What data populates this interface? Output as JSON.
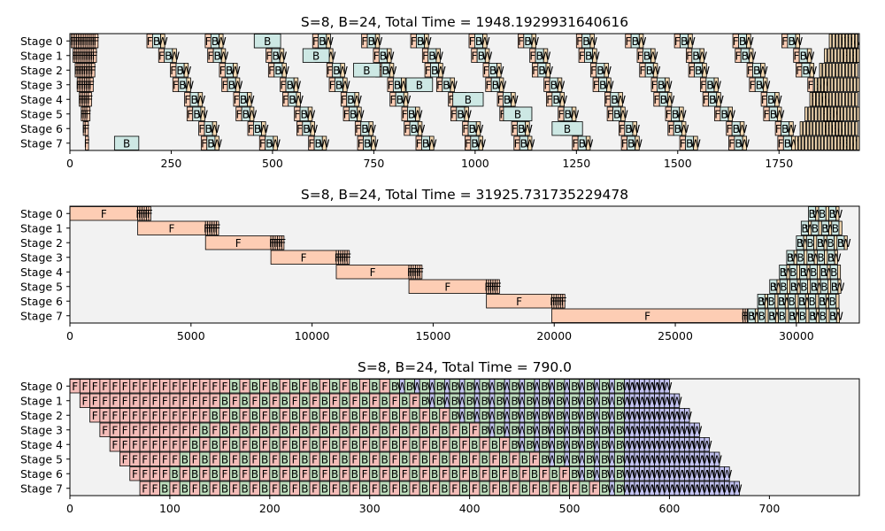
{
  "chart_data": [
    {
      "type": "gantt",
      "title": "S=8, B=24, Total Time = 1948.1929931640616",
      "stages": [
        "Stage 0",
        "Stage 1",
        "Stage 2",
        "Stage 3",
        "Stage 4",
        "Stage 5",
        "Stage 6",
        "Stage 7"
      ],
      "xlim": [
        0,
        1948.19
      ],
      "xticks": [
        0,
        250,
        500,
        750,
        1000,
        1250,
        1500,
        1750
      ],
      "xtick_labels": [
        "0",
        "250",
        "500",
        "750",
        "1000",
        "1250",
        "1500",
        "1750"
      ],
      "grid": false,
      "block_labels": {
        "F": "F",
        "B": "B",
        "W": "W"
      },
      "colors": {
        "F": "#fdcdb4",
        "B": "#cde8e4",
        "W": "#f3d8b0",
        "background": "#f2f2f2"
      },
      "schedule_pattern": "1F1B-like, irregular durations",
      "representative_blocks": [
        {
          "stage": 0,
          "type": "B",
          "start": 455,
          "end": 520
        },
        {
          "stage": 1,
          "type": "B",
          "start": 575,
          "end": 640
        },
        {
          "stage": 2,
          "type": "B",
          "start": 700,
          "end": 765
        },
        {
          "stage": 3,
          "type": "B",
          "start": 830,
          "end": 895
        },
        {
          "stage": 4,
          "type": "B",
          "start": 945,
          "end": 1020
        },
        {
          "stage": 5,
          "type": "B",
          "start": 1070,
          "end": 1140
        },
        {
          "stage": 6,
          "type": "B",
          "start": 1190,
          "end": 1265
        },
        {
          "stage": 7,
          "type": "B",
          "start": 110,
          "end": 170
        }
      ]
    },
    {
      "type": "gantt",
      "title": "S=8, B=24, Total Time = 31925.731735229478",
      "stages": [
        "Stage 0",
        "Stage 1",
        "Stage 2",
        "Stage 3",
        "Stage 4",
        "Stage 5",
        "Stage 6",
        "Stage 7"
      ],
      "xlim": [
        0,
        32600
      ],
      "xticks": [
        0,
        5000,
        10000,
        15000,
        20000,
        25000,
        30000
      ],
      "xtick_labels": [
        "0",
        "5000",
        "10000",
        "15000",
        "20000",
        "25000",
        "30000"
      ],
      "grid": false,
      "block_labels": {
        "F": "F",
        "B": "B",
        "W": "W"
      },
      "colors": {
        "F": "#fdcdb4",
        "B": "#cde8e4",
        "W": "#f3d8b0",
        "background": "#f2f2f2"
      },
      "first_forward": [
        {
          "stage": 0,
          "start": 0,
          "end": 2800
        },
        {
          "stage": 1,
          "start": 2800,
          "end": 5600
        },
        {
          "stage": 2,
          "start": 5600,
          "end": 8300
        },
        {
          "stage": 3,
          "start": 8300,
          "end": 11000
        },
        {
          "stage": 4,
          "start": 11000,
          "end": 14000
        },
        {
          "stage": 5,
          "start": 14000,
          "end": 17200
        },
        {
          "stage": 6,
          "start": 17200,
          "end": 19900
        },
        {
          "stage": 7,
          "start": 19900,
          "end": 27800
        }
      ],
      "backward_start": [
        30500,
        30200,
        30000,
        29600,
        29300,
        28900,
        28400,
        28000
      ]
    },
    {
      "type": "gantt",
      "title": "S=8, B=24, Total Time = 790.0",
      "stages": [
        "Stage 0",
        "Stage 1",
        "Stage 2",
        "Stage 3",
        "Stage 4",
        "Stage 5",
        "Stage 6",
        "Stage 7"
      ],
      "xlim": [
        0,
        790
      ],
      "xticks": [
        0,
        100,
        200,
        300,
        400,
        500,
        600,
        700
      ],
      "xtick_labels": [
        "0",
        "100",
        "200",
        "300",
        "400",
        "500",
        "600",
        "700"
      ],
      "grid": false,
      "block_labels": {
        "F": "F",
        "B": "B",
        "W": "W"
      },
      "colors": {
        "F": "#f4bcb8",
        "B": "#bcdcbc",
        "W": "#c2c2f0",
        "background": "#f2f2f2"
      },
      "unit_durations": {
        "F": 10,
        "B": 10,
        "W": 5
      },
      "stage_offset": 10,
      "warmup_forwards": [
        16,
        14,
        12,
        10,
        8,
        6,
        4,
        2
      ]
    }
  ]
}
